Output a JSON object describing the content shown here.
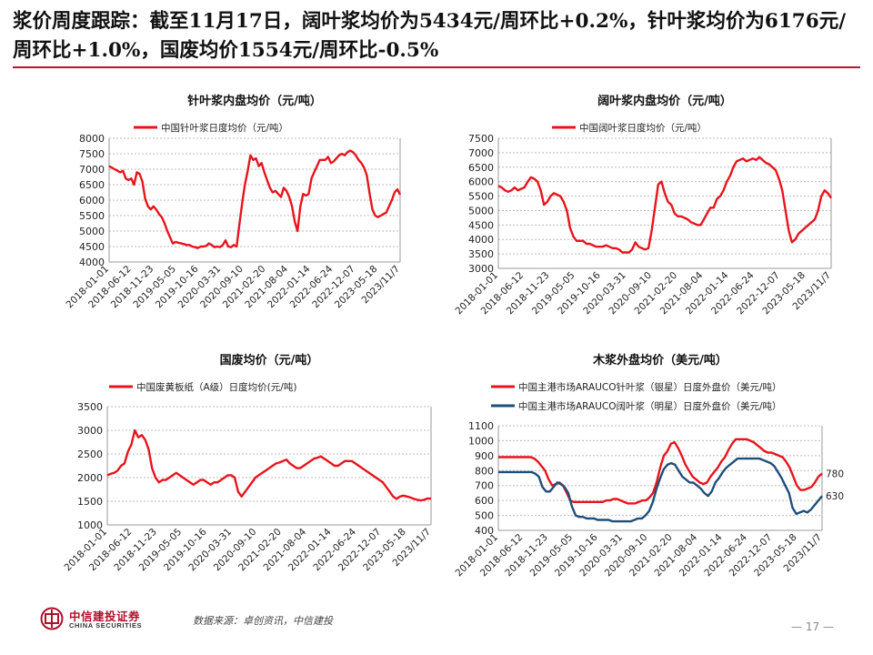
{
  "headline": "浆价周度跟踪：截至11月17日，阔叶浆均价为5434元/周环比+0.2%，针叶浆均价为6176元/周环比+1.0%，国废均价1554元/周环比-0.5%",
  "footer": {
    "source": "数据来源：卓创资讯，中信建投",
    "page": "— 17 —",
    "logo_cn": "中信建投证券",
    "logo_en": "CHINA SECURITIES"
  },
  "colors": {
    "red": "#e8141c",
    "navy": "#1f4e79",
    "accent": "#c8102e"
  },
  "x_ticks": [
    "2018-01-01",
    "2018-06-12",
    "2018-11-23",
    "2019-05-05",
    "2019-10-16",
    "2020-03-31",
    "2020-09-10",
    "2021-02-20",
    "2021-08-04",
    "2022-01-14",
    "2022-06-24",
    "2022-12-07",
    "2023-05-18",
    "2023/11/7"
  ],
  "chart_data": [
    {
      "id": "softwood",
      "type": "line",
      "title": "针叶浆内盘均价（元/吨）",
      "ylim": [
        4000,
        8000
      ],
      "yticks": [
        4000,
        4500,
        5000,
        5500,
        6000,
        6500,
        7000,
        7500,
        8000
      ],
      "grid": true,
      "legend": "top",
      "series": [
        {
          "name": "中国针叶浆日度均价（元/吨）",
          "color": "#e8141c",
          "values": [
            7100,
            7050,
            7000,
            6950,
            6900,
            6950,
            6700,
            6650,
            6700,
            6500,
            6900,
            6850,
            6600,
            6050,
            5800,
            5700,
            5800,
            5700,
            5550,
            5450,
            5250,
            5000,
            4800,
            4600,
            4650,
            4620,
            4600,
            4580,
            4550,
            4550,
            4500,
            4480,
            4450,
            4500,
            4500,
            4520,
            4600,
            4550,
            4480,
            4500,
            4480,
            4550,
            4700,
            4500,
            4480,
            4550,
            4500,
            5200,
            5900,
            6500,
            6950,
            7450,
            7300,
            7350,
            7100,
            7200,
            6900,
            6650,
            6400,
            6250,
            6300,
            6200,
            6100,
            6400,
            6300,
            6100,
            5800,
            5300,
            5000,
            5800,
            6200,
            6150,
            6200,
            6700,
            6900,
            7100,
            7300,
            7300,
            7300,
            7400,
            7200,
            7250,
            7350,
            7450,
            7500,
            7450,
            7550,
            7600,
            7550,
            7450,
            7300,
            7200,
            7050,
            6800,
            6200,
            5700,
            5500,
            5450,
            5500,
            5550,
            5600,
            5800,
            6000,
            6250,
            6350,
            6176
          ]
        }
      ]
    },
    {
      "id": "hardwood",
      "type": "line",
      "title": "阔叶浆内盘均价（元/吨）",
      "ylim": [
        3000,
        7500
      ],
      "yticks": [
        3000,
        3500,
        4000,
        4500,
        5000,
        5500,
        6000,
        6500,
        7000,
        7500
      ],
      "grid": true,
      "legend": "top",
      "series": [
        {
          "name": "中国阔叶浆日度均价（元/吨）",
          "color": "#e8141c",
          "values": [
            5850,
            5800,
            5700,
            5650,
            5700,
            5800,
            5700,
            5750,
            5800,
            6000,
            6150,
            6100,
            6000,
            5700,
            5200,
            5300,
            5500,
            5600,
            5550,
            5500,
            5300,
            5000,
            4400,
            4100,
            3950,
            3950,
            3950,
            3850,
            3850,
            3800,
            3750,
            3750,
            3750,
            3800,
            3750,
            3700,
            3700,
            3650,
            3550,
            3550,
            3550,
            3650,
            3900,
            3750,
            3700,
            3650,
            3700,
            4300,
            5100,
            5900,
            6000,
            5600,
            5300,
            5200,
            4900,
            4800,
            4800,
            4750,
            4700,
            4600,
            4550,
            4500,
            4500,
            4700,
            4900,
            5100,
            5100,
            5400,
            5500,
            5700,
            6000,
            6200,
            6500,
            6700,
            6750,
            6800,
            6700,
            6750,
            6800,
            6750,
            6850,
            6750,
            6650,
            6600,
            6500,
            6400,
            6100,
            5700,
            5000,
            4300,
            3900,
            4000,
            4200,
            4300,
            4400,
            4500,
            4600,
            4700,
            5000,
            5500,
            5700,
            5600,
            5434
          ]
        }
      ]
    },
    {
      "id": "occ",
      "type": "line",
      "title": "国废均价（元/吨）",
      "ylim": [
        1000,
        3500
      ],
      "yticks": [
        1000,
        1500,
        2000,
        2500,
        3000,
        3500
      ],
      "grid": true,
      "legend": "top",
      "series": [
        {
          "name": "中国废黄板纸（A级）日度均价(元/吨)",
          "color": "#e8141c",
          "values": [
            2050,
            2080,
            2100,
            2150,
            2250,
            2300,
            2550,
            2700,
            3000,
            2850,
            2900,
            2800,
            2600,
            2200,
            2000,
            1900,
            1950,
            1950,
            2000,
            2050,
            2100,
            2050,
            2000,
            1950,
            1900,
            1850,
            1900,
            1950,
            1950,
            1900,
            1850,
            1900,
            1900,
            1950,
            2000,
            2050,
            2050,
            2000,
            1700,
            1600,
            1700,
            1800,
            1900,
            2000,
            2050,
            2100,
            2150,
            2200,
            2250,
            2300,
            2320,
            2350,
            2380,
            2300,
            2250,
            2200,
            2200,
            2250,
            2300,
            2350,
            2400,
            2420,
            2450,
            2400,
            2350,
            2300,
            2250,
            2250,
            2300,
            2350,
            2350,
            2350,
            2300,
            2250,
            2200,
            2150,
            2100,
            2050,
            2000,
            1950,
            1900,
            1800,
            1700,
            1600,
            1550,
            1600,
            1620,
            1600,
            1580,
            1550,
            1530,
            1520,
            1530,
            1560,
            1554
          ]
        }
      ]
    },
    {
      "id": "external",
      "type": "line",
      "title": "木浆外盘均价（美元/吨）",
      "ylim": [
        400,
        1100
      ],
      "yticks": [
        400,
        500,
        600,
        700,
        800,
        900,
        1000,
        1100
      ],
      "grid": true,
      "legend": "top",
      "annotations": [
        "780",
        "630"
      ],
      "series": [
        {
          "name": "中国主港市场ARAUCO针叶浆（银星）日度外盘价（美元/吨）",
          "color": "#e8141c",
          "values": [
            890,
            890,
            890,
            890,
            890,
            890,
            890,
            890,
            890,
            890,
            880,
            860,
            830,
            800,
            740,
            700,
            710,
            720,
            700,
            650,
            600,
            590,
            590,
            590,
            590,
            590,
            590,
            590,
            590,
            590,
            600,
            600,
            610,
            610,
            600,
            590,
            580,
            580,
            580,
            590,
            600,
            600,
            620,
            650,
            720,
            820,
            900,
            930,
            980,
            990,
            950,
            900,
            840,
            800,
            760,
            740,
            720,
            710,
            720,
            760,
            790,
            820,
            860,
            890,
            940,
            980,
            1010,
            1010,
            1010,
            1010,
            1000,
            990,
            970,
            950,
            930,
            920,
            920,
            910,
            900,
            890,
            860,
            820,
            760,
            700,
            670,
            670,
            680,
            690,
            720,
            760,
            780
          ]
        },
        {
          "name": "中国主港市场ARAUCO阔叶浆（明星）日度外盘价（美元/吨）",
          "color": "#1f4e79",
          "values": [
            790,
            790,
            790,
            790,
            790,
            790,
            790,
            790,
            790,
            790,
            780,
            760,
            690,
            660,
            660,
            690,
            720,
            710,
            690,
            650,
            560,
            500,
            490,
            490,
            480,
            480,
            480,
            470,
            470,
            470,
            470,
            460,
            460,
            460,
            460,
            460,
            460,
            470,
            480,
            480,
            500,
            530,
            590,
            680,
            750,
            810,
            840,
            850,
            840,
            800,
            760,
            740,
            720,
            720,
            700,
            680,
            650,
            630,
            660,
            720,
            750,
            790,
            820,
            840,
            860,
            880,
            880,
            880,
            880,
            880,
            880,
            880,
            870,
            860,
            850,
            830,
            790,
            750,
            700,
            650,
            550,
            510,
            520,
            530,
            520,
            540,
            570,
            600,
            630
          ]
        }
      ]
    }
  ]
}
